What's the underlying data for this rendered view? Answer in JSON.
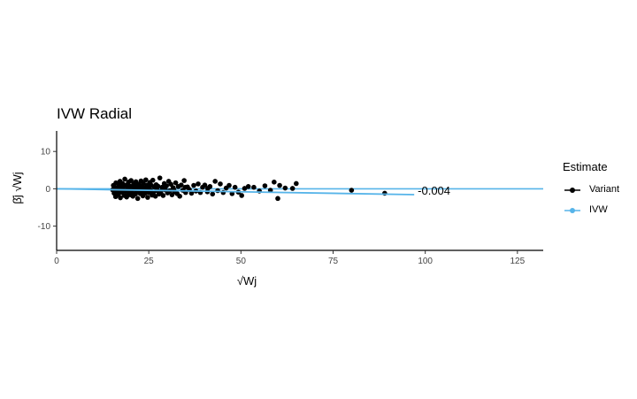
{
  "chart_data": {
    "type": "scatter",
    "title": "IVW Radial",
    "xlabel": "√Wj",
    "ylabel": "β̂j √Wj",
    "xlim": [
      0,
      132
    ],
    "ylim": [
      -16.5,
      15.5
    ],
    "x_ticks": [
      0,
      25,
      50,
      75,
      100,
      125
    ],
    "y_ticks": [
      -10,
      0,
      10
    ],
    "grid": false,
    "legend_position": "right",
    "legend_title": "Estimate",
    "colors": {
      "variant": "#000000",
      "ivw": "#56B4E9",
      "zero_line": "#56B4E9"
    },
    "series": [
      {
        "name": "Variant",
        "marker": "point",
        "points": [
          [
            15.2,
            -0.3
          ],
          [
            15.4,
            0.9
          ],
          [
            15.6,
            -1.2
          ],
          [
            15.8,
            0.4
          ],
          [
            16.0,
            -2.1
          ],
          [
            16.1,
            1.6
          ],
          [
            16.3,
            -0.8
          ],
          [
            16.5,
            0.2
          ],
          [
            16.7,
            -1.5
          ],
          [
            16.9,
            1.1
          ],
          [
            17.0,
            -0.5
          ],
          [
            17.2,
            2.0
          ],
          [
            17.3,
            -2.4
          ],
          [
            17.5,
            0.6
          ],
          [
            17.7,
            -1.0
          ],
          [
            17.9,
            1.4
          ],
          [
            18.0,
            -0.2
          ],
          [
            18.2,
            0.8
          ],
          [
            18.4,
            -1.8
          ],
          [
            18.5,
            2.6
          ],
          [
            18.7,
            -0.6
          ],
          [
            18.9,
            1.0
          ],
          [
            19.0,
            -2.2
          ],
          [
            19.2,
            0.3
          ],
          [
            19.4,
            -1.1
          ],
          [
            19.5,
            1.8
          ],
          [
            19.7,
            -0.4
          ],
          [
            19.9,
            0.7
          ],
          [
            20.0,
            -1.6
          ],
          [
            20.2,
            2.2
          ],
          [
            20.4,
            -0.9
          ],
          [
            20.5,
            0.5
          ],
          [
            20.7,
            -2.0
          ],
          [
            20.9,
            1.3
          ],
          [
            21.0,
            -0.1
          ],
          [
            21.2,
            0.9
          ],
          [
            21.4,
            -1.4
          ],
          [
            21.5,
            1.9
          ],
          [
            21.7,
            -0.7
          ],
          [
            21.9,
            0.4
          ],
          [
            22.0,
            -2.6
          ],
          [
            22.2,
            1.2
          ],
          [
            22.4,
            -0.3
          ],
          [
            22.5,
            0.8
          ],
          [
            22.7,
            -1.3
          ],
          [
            22.9,
            2.1
          ],
          [
            23.0,
            -0.8
          ],
          [
            23.2,
            0.6
          ],
          [
            23.4,
            -1.9
          ],
          [
            23.5,
            1.5
          ],
          [
            23.7,
            -0.2
          ],
          [
            23.9,
            0.3
          ],
          [
            24.0,
            -1.2
          ],
          [
            24.2,
            2.4
          ],
          [
            24.4,
            -0.6
          ],
          [
            24.5,
            1.0
          ],
          [
            24.7,
            -2.3
          ],
          [
            24.9,
            0.2
          ],
          [
            25.1,
            -1.0
          ],
          [
            25.3,
            1.7
          ],
          [
            25.5,
            -0.4
          ],
          [
            25.7,
            0.9
          ],
          [
            25.9,
            -1.7
          ],
          [
            26.1,
            2.3
          ],
          [
            26.3,
            -0.9
          ],
          [
            26.5,
            0.5
          ],
          [
            26.8,
            -2.0
          ],
          [
            27.0,
            1.1
          ],
          [
            27.2,
            -0.2
          ],
          [
            27.5,
            0.7
          ],
          [
            27.8,
            -1.4
          ],
          [
            28.0,
            2.9
          ],
          [
            28.3,
            -0.7
          ],
          [
            28.6,
            0.4
          ],
          [
            28.9,
            -1.8
          ],
          [
            29.2,
            1.4
          ],
          [
            29.5,
            -0.3
          ],
          [
            29.8,
            0.8
          ],
          [
            30.1,
            -1.1
          ],
          [
            30.4,
            2.0
          ],
          [
            30.7,
            -0.5
          ],
          [
            31.0,
            1.2
          ],
          [
            31.3,
            -1.6
          ],
          [
            31.6,
            0.3
          ],
          [
            32.0,
            -0.8
          ],
          [
            32.3,
            1.6
          ],
          [
            32.7,
            -1.3
          ],
          [
            33.0,
            0.6
          ],
          [
            33.4,
            -2.0
          ],
          [
            33.8,
            1.0
          ],
          [
            34.2,
            -0.4
          ],
          [
            34.6,
            2.2
          ],
          [
            35.0,
            -1.0
          ],
          [
            35.5,
            0.5
          ],
          [
            36.0,
            -0.2
          ],
          [
            36.6,
            -1.2
          ],
          [
            37.2,
            0.9
          ],
          [
            37.8,
            -0.6
          ],
          [
            38.4,
            1.3
          ],
          [
            39.0,
            -1.0
          ],
          [
            39.6,
            0.4
          ],
          [
            40.2,
            1.0
          ],
          [
            40.9,
            -0.8
          ],
          [
            41.6,
            0.6
          ],
          [
            42.3,
            -1.4
          ],
          [
            43.0,
            2.0
          ],
          [
            43.7,
            -0.5
          ],
          [
            44.4,
            1.3
          ],
          [
            45.2,
            -1.0
          ],
          [
            46.0,
            0.2
          ],
          [
            46.8,
            0.9
          ],
          [
            47.6,
            -1.3
          ],
          [
            48.4,
            0.4
          ],
          [
            49.3,
            -0.9
          ],
          [
            50.2,
            -1.8
          ],
          [
            51.0,
            0.1
          ],
          [
            52.0,
            0.6
          ],
          [
            53.5,
            0.4
          ],
          [
            55.0,
            -0.6
          ],
          [
            56.5,
            0.8
          ],
          [
            58.0,
            -0.4
          ],
          [
            59.0,
            1.8
          ],
          [
            60.0,
            -2.6
          ],
          [
            60.5,
            0.9
          ],
          [
            62.0,
            0.2
          ],
          [
            64.0,
            0.1
          ],
          [
            65.0,
            1.4
          ],
          [
            80.0,
            -0.4
          ],
          [
            89.0,
            -1.2
          ],
          [
            16.4,
            0.0
          ],
          [
            19.1,
            -0.5
          ],
          [
            21.1,
            0.2
          ],
          [
            23.1,
            -0.4
          ],
          [
            25.0,
            0.3
          ],
          [
            27.4,
            -0.6
          ],
          [
            29.0,
            0.1
          ],
          [
            31.8,
            -0.2
          ],
          [
            34.9,
            0.4
          ],
          [
            41.0,
            0.1
          ]
        ]
      },
      {
        "name": "IVW",
        "marker": "line",
        "intercept": 0,
        "slope": -0.004,
        "x_range": [
          0,
          97
        ],
        "label": "-0.004"
      }
    ]
  }
}
